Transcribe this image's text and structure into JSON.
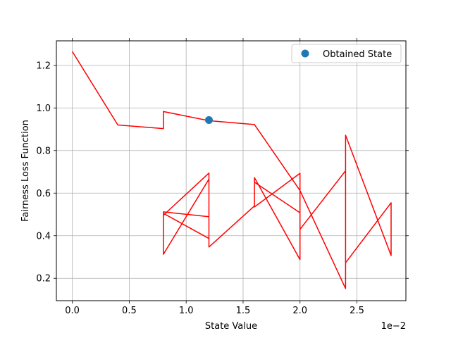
{
  "chart_data": {
    "type": "line",
    "xlabel": "State Value",
    "ylabel": "Fairness Loss Function",
    "x_offset_label": "1e−2",
    "xlim": [
      -0.0014,
      0.0293
    ],
    "ylim": [
      0.095,
      1.315
    ],
    "grid": true,
    "xticks": [
      0,
      0.005,
      0.01,
      0.015,
      0.02,
      0.025
    ],
    "xtick_labels": [
      "0.0",
      "0.5",
      "1.0",
      "1.5",
      "2.0",
      "2.5"
    ],
    "yticks": [
      0.2,
      0.4,
      0.6,
      0.8,
      1.0,
      1.2
    ],
    "ytick_labels": [
      "0.2",
      "0.4",
      "0.6",
      "0.8",
      "1.0",
      "1.2"
    ],
    "colors": {
      "line": "#ff0000",
      "marker": "#1f77b4",
      "grid": "#b0b0b0"
    },
    "series": [
      {
        "kind": "line",
        "x": [
          0.0,
          0.004,
          0.008,
          0.008,
          0.012,
          0.016,
          0.02,
          0.024,
          0.024,
          0.028,
          0.028,
          0.024,
          0.024,
          0.02,
          0.02,
          0.016,
          0.016,
          0.02,
          0.02,
          0.016,
          0.016,
          0.012,
          0.012,
          0.008,
          0.008,
          0.012,
          0.012,
          0.008,
          0.008,
          0.012,
          0.012
        ],
        "y": [
          1.265,
          0.92,
          0.903,
          0.983,
          0.94,
          0.922,
          0.612,
          0.152,
          0.872,
          0.307,
          0.555,
          0.273,
          0.705,
          0.43,
          0.693,
          0.535,
          0.673,
          0.288,
          0.508,
          0.651,
          0.54,
          0.347,
          0.666,
          0.313,
          0.512,
          0.489,
          0.694,
          0.496,
          0.505,
          0.387,
          0.69
        ]
      },
      {
        "kind": "scatter",
        "name": "Obtained State",
        "x": [
          0.012
        ],
        "y": [
          0.943
        ]
      }
    ],
    "legend": {
      "placement": "top-right",
      "entries": [
        "Obtained State"
      ]
    }
  }
}
